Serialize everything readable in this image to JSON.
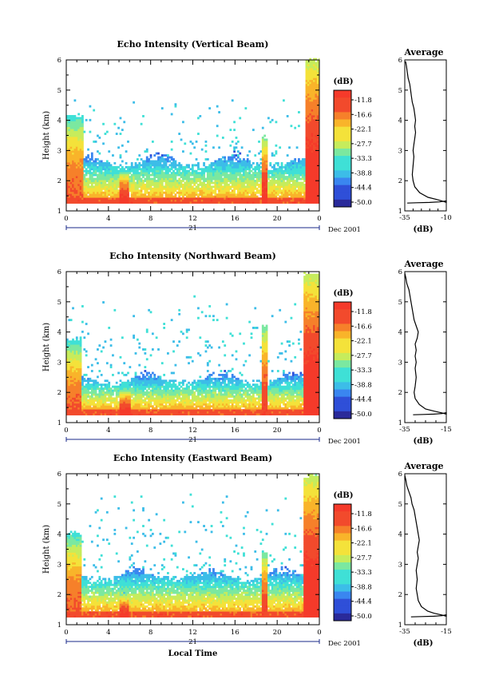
{
  "chart_data": [
    {
      "type": "heatmap",
      "title": "Echo Intensity (Vertical Beam)",
      "ylabel": "Height (km)",
      "xlim": [
        0,
        24
      ],
      "ylim": [
        1,
        6
      ],
      "xticks": [
        "0",
        "4",
        "8",
        "12",
        "16",
        "20",
        "0"
      ],
      "yticks": [
        "1",
        "2",
        "3",
        "4",
        "5",
        "6"
      ],
      "date_day": "21",
      "date_label": "Dec 2001",
      "colorbar": {
        "unit": "(dB)",
        "labels": [
          "-11.8",
          "-16.6",
          "-22.1",
          "-27.7",
          "-33.3",
          "-38.8",
          "-44.4",
          "-50.0"
        ]
      },
      "profile": {
        "title": "Average",
        "xlabel": "(dB)",
        "xticks": [
          "-35",
          "-10"
        ],
        "xlim": [
          -35,
          -10
        ],
        "heights": [
          1.28,
          1.32,
          1.38,
          1.45,
          1.6,
          1.8,
          2.0,
          2.2,
          2.5,
          2.8,
          3.0,
          3.2,
          3.4,
          3.6,
          3.8,
          4.0,
          4.2,
          4.4,
          4.6,
          4.8,
          5.0,
          5.2,
          5.4,
          5.6,
          5.8,
          5.95
        ],
        "values": [
          -10,
          -12,
          -16,
          -21,
          -26,
          -29,
          -30,
          -30.5,
          -30,
          -29.5,
          -30,
          -29.5,
          -29,
          -28.5,
          -29,
          -28.5,
          -29,
          -29.5,
          -30.5,
          -31,
          -31.5,
          -32,
          -33,
          -33.5,
          -34,
          -34.5
        ],
        "near_surface": [
          -33.5,
          -28,
          -20,
          -14,
          -10
        ]
      },
      "events": [
        {
          "x0": 0,
          "x1": 1.5,
          "top": 4.0,
          "inten": 0.85
        },
        {
          "x0": 5.0,
          "x1": 5.9,
          "top": 2.2,
          "inten": 0.95
        },
        {
          "x0": 18.5,
          "x1": 19.0,
          "top": 3.3,
          "inten": 0.95
        },
        {
          "x0": 22.5,
          "x1": 24,
          "top": 5.9,
          "inten": 1.0
        }
      ],
      "layer_top": 2.6,
      "cloud_top": 4.7
    },
    {
      "type": "heatmap",
      "title": "Echo Intensity (Northward Beam)",
      "ylabel": "Height (km)",
      "xlim": [
        0,
        24
      ],
      "ylim": [
        1,
        6
      ],
      "xticks": [
        "0",
        "4",
        "8",
        "12",
        "16",
        "20",
        "0"
      ],
      "yticks": [
        "1",
        "2",
        "3",
        "4",
        "5",
        "6"
      ],
      "date_day": "21",
      "date_label": "Dec 2001",
      "colorbar": {
        "unit": "(dB)",
        "labels": [
          "-11.8",
          "-16.6",
          "-22.1",
          "-27.7",
          "-33.3",
          "-38.8",
          "-44.4",
          "-50.0"
        ]
      },
      "profile": {
        "title": "Average",
        "xlabel": "(dB)",
        "xticks": [
          "-35",
          "-15"
        ],
        "xlim": [
          -35,
          -15
        ],
        "heights": [
          1.28,
          1.32,
          1.38,
          1.45,
          1.6,
          1.8,
          2.0,
          2.2,
          2.5,
          2.8,
          3.0,
          3.2,
          3.4,
          3.6,
          3.8,
          4.0,
          4.2,
          4.4,
          4.6,
          4.8,
          5.0,
          5.2,
          5.4,
          5.6,
          5.8,
          5.95
        ],
        "values": [
          -15,
          -17,
          -21,
          -25,
          -28,
          -30,
          -30.5,
          -30,
          -29.5,
          -30,
          -29.5,
          -30,
          -29.5,
          -30,
          -29,
          -28.5,
          -29.5,
          -30.5,
          -31,
          -31.5,
          -32,
          -32.5,
          -33,
          -34,
          -34.5,
          -35
        ],
        "near_surface": [
          -31,
          -26,
          -21,
          -17,
          -15
        ]
      },
      "events": [
        {
          "x0": 0,
          "x1": 1.3,
          "top": 3.6,
          "inten": 0.85
        },
        {
          "x0": 5.0,
          "x1": 6.0,
          "top": 2.0,
          "inten": 0.95
        },
        {
          "x0": 18.4,
          "x1": 18.9,
          "top": 4.1,
          "inten": 0.9
        },
        {
          "x0": 22.4,
          "x1": 24,
          "top": 5.8,
          "inten": 1.0
        }
      ],
      "layer_top": 2.4,
      "cloud_top": 5.2
    },
    {
      "type": "heatmap",
      "title": "Echo Intensity (Eastward Beam)",
      "ylabel": "Height (km)",
      "xlabel": "Local Time",
      "xlim": [
        0,
        24
      ],
      "ylim": [
        1,
        6
      ],
      "xticks": [
        "0",
        "4",
        "8",
        "12",
        "16",
        "20",
        "0"
      ],
      "yticks": [
        "1",
        "2",
        "3",
        "4",
        "5",
        "6"
      ],
      "date_day": "21",
      "date_label": "Dec 2001",
      "colorbar": {
        "unit": "(dB)",
        "labels": [
          "-11.8",
          "-16.6",
          "-22.1",
          "-27.7",
          "-33.3",
          "-38.8",
          "-44.4",
          "-50.0"
        ]
      },
      "profile": {
        "title": "Average",
        "xlabel": "(dB)",
        "xticks": [
          "-35",
          "-15"
        ],
        "xlim": [
          -35,
          -15
        ],
        "heights": [
          1.28,
          1.32,
          1.38,
          1.45,
          1.6,
          1.8,
          2.0,
          2.2,
          2.5,
          2.8,
          3.0,
          3.2,
          3.4,
          3.6,
          3.8,
          4.0,
          4.2,
          4.4,
          4.6,
          4.8,
          5.0,
          5.2,
          5.4,
          5.6,
          5.8,
          5.95
        ],
        "values": [
          -15,
          -17,
          -21,
          -24,
          -27,
          -28.5,
          -29,
          -29.5,
          -29,
          -29.5,
          -29,
          -28.5,
          -29,
          -28.5,
          -28,
          -28.5,
          -29,
          -29.5,
          -30,
          -30.5,
          -31.5,
          -32,
          -33,
          -34,
          -34.5,
          -35
        ],
        "near_surface": [
          -32,
          -27,
          -21,
          -17,
          -15
        ]
      },
      "events": [
        {
          "x0": 0,
          "x1": 1.4,
          "top": 3.9,
          "inten": 0.85
        },
        {
          "x0": 5.0,
          "x1": 5.8,
          "top": 1.9,
          "inten": 0.95
        },
        {
          "x0": 18.4,
          "x1": 18.9,
          "top": 3.3,
          "inten": 0.9
        },
        {
          "x0": 22.4,
          "x1": 24,
          "top": 5.8,
          "inten": 1.0
        }
      ],
      "layer_top": 2.6,
      "cloud_top": 5.3
    }
  ]
}
